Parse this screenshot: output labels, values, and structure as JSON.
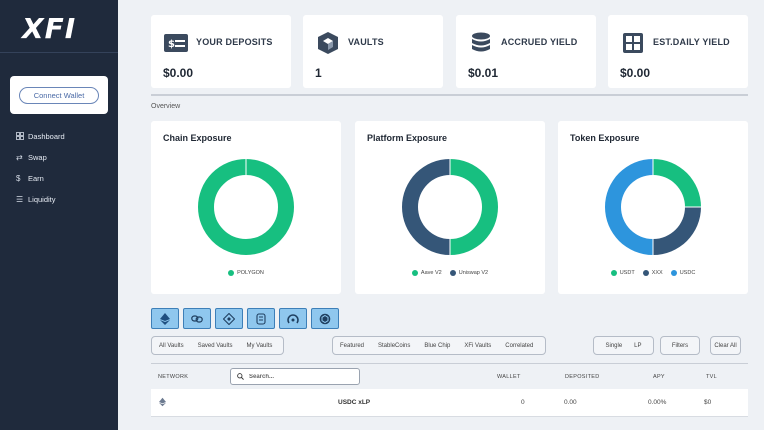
{
  "brand": {
    "logo": "XFI"
  },
  "sidebar": {
    "connect_label": "Connect Wallet",
    "items": [
      {
        "label": "Dashboard",
        "icon": "grid-icon"
      },
      {
        "label": "Swap",
        "icon": "swap-arrows-icon"
      },
      {
        "label": "Earn",
        "icon": "dollar-icon"
      },
      {
        "label": "Liquidity",
        "icon": "list-icon"
      }
    ]
  },
  "stats": [
    {
      "label": "YOUR DEPOSITS",
      "value": "$0.00",
      "icon": "deposit-card-icon"
    },
    {
      "label": "VAULTS",
      "value": "1",
      "icon": "vault-cube-icon"
    },
    {
      "label": "ACCRUED YIELD",
      "value": "$0.01",
      "icon": "coin-stack-icon"
    },
    {
      "label": "EST.DAILY YIELD",
      "value": "$0.00",
      "icon": "calculator-icon"
    }
  ],
  "overview_label": "Overview",
  "colors": {
    "green": "#17bf80",
    "navy": "#355678",
    "blue": "#2d95dd",
    "sidebar": "#1f2a3c"
  },
  "chart_data": [
    {
      "type": "pie",
      "title": "Chain Exposure",
      "categories": [
        "POLYGON"
      ],
      "values": [
        100
      ]
    },
    {
      "type": "pie",
      "title": "Platform Exposure",
      "categories": [
        "Aave V2",
        "Uniswap V2"
      ],
      "values": [
        50,
        50
      ]
    },
    {
      "type": "pie",
      "title": "Token Exposure",
      "categories": [
        "USDT",
        "XXX",
        "USDC"
      ],
      "values": [
        25,
        25,
        50
      ]
    }
  ],
  "chain_buttons": [
    "ethereum-icon",
    "link-chain-icon",
    "binance-icon",
    "wallet-icon",
    "fantom-icon",
    "polygon-icon"
  ],
  "filters": {
    "vaults": [
      "All Vaults",
      "Saved Vaults",
      "My Vaults"
    ],
    "categories": [
      "Featured",
      "StableCoins",
      "Blue Chip",
      "XFi Vaults",
      "Correlated"
    ],
    "type": [
      "Single",
      "LP"
    ],
    "filters_label": "Filters",
    "clear_label": "Clear All"
  },
  "table": {
    "headers": {
      "network": "NETWORK",
      "wallet": "WALLET",
      "deposited": "DEPOSITED",
      "apy": "APY",
      "tvl": "TVL"
    },
    "search_placeholder": "Search...",
    "rows": [
      {
        "network_icon": "ethereum-icon",
        "name": "USDC xLP",
        "wallet": "0",
        "deposited": "0.00",
        "apy": "0.00%",
        "tvl": "$0"
      }
    ]
  }
}
